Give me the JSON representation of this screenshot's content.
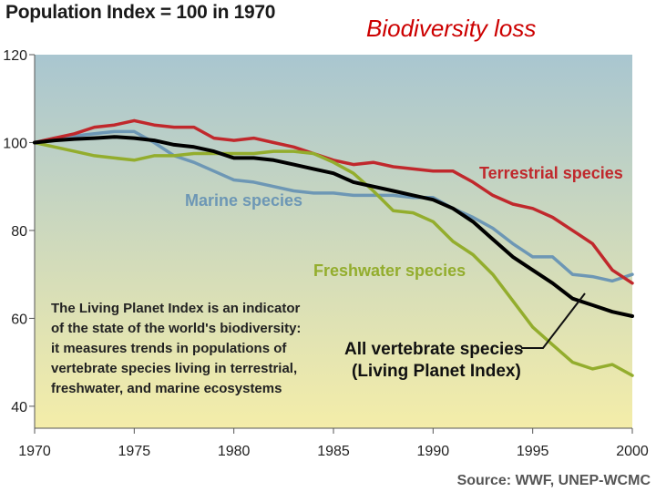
{
  "header": {
    "chart_title": "Population Index = 100 in 1970",
    "slide_title": "Biodiversity loss"
  },
  "source": "Source: WWF, UNEP-WCMC",
  "colors": {
    "terrestrial": "#c0282c",
    "marine": "#6d97b5",
    "freshwater": "#93ad2d",
    "all": "#000000",
    "bg_top": "#a9c6d0",
    "bg_bottom": "#f4eda9"
  },
  "chart_data": {
    "type": "line",
    "title": "Population Index = 100 in 1970",
    "xlabel": "",
    "ylabel": "",
    "xlim": [
      1970,
      2000
    ],
    "ylim": [
      35,
      120
    ],
    "x_ticks": [
      "1970",
      "1975",
      "1980",
      "1985",
      "1990",
      "1995",
      "2000"
    ],
    "y_ticks": [
      "40",
      "60",
      "80",
      "100",
      "120"
    ],
    "series": [
      {
        "name": "Terrestrial species",
        "key": "terrestrial",
        "x": [
          1970,
          1971,
          1972,
          1973,
          1974,
          1975,
          1976,
          1977,
          1978,
          1979,
          1980,
          1981,
          1982,
          1983,
          1984,
          1985,
          1986,
          1987,
          1988,
          1989,
          1990,
          1991,
          1992,
          1993,
          1994,
          1995,
          1996,
          1997,
          1998,
          1999,
          2000
        ],
        "y": [
          100,
          101,
          102,
          103.5,
          104,
          105,
          104,
          103.5,
          103.5,
          101,
          100.5,
          101,
          100,
          99,
          97.5,
          96,
          95,
          95.5,
          94.5,
          94,
          93.5,
          93.5,
          91,
          88,
          86,
          85,
          83,
          80,
          77,
          71,
          68
        ]
      },
      {
        "name": "Marine species",
        "key": "marine",
        "x": [
          1970,
          1971,
          1972,
          1973,
          1974,
          1975,
          1976,
          1977,
          1978,
          1979,
          1980,
          1981,
          1982,
          1983,
          1984,
          1985,
          1986,
          1987,
          1988,
          1989,
          1990,
          1991,
          1992,
          1993,
          1994,
          1995,
          1996,
          1997,
          1998,
          1999,
          2000
        ],
        "y": [
          100,
          101,
          101.5,
          102,
          102.5,
          102.5,
          100,
          97,
          95.5,
          93.5,
          91.5,
          91,
          90,
          89,
          88.5,
          88.5,
          88,
          88,
          88,
          87.5,
          87.5,
          85,
          83,
          80.5,
          77,
          74,
          74,
          70,
          69.5,
          68.5,
          70
        ]
      },
      {
        "name": "Freshwater species",
        "key": "freshwater",
        "x": [
          1970,
          1971,
          1972,
          1973,
          1974,
          1975,
          1976,
          1977,
          1978,
          1979,
          1980,
          1981,
          1982,
          1983,
          1984,
          1985,
          1986,
          1987,
          1988,
          1989,
          1990,
          1991,
          1992,
          1993,
          1994,
          1995,
          1996,
          1997,
          1998,
          1999,
          2000
        ],
        "y": [
          100,
          99,
          98,
          97,
          96.5,
          96,
          97,
          97,
          97.5,
          97.5,
          97.5,
          97.5,
          98,
          98,
          97.5,
          95.5,
          93,
          89,
          84.5,
          84,
          82,
          77.5,
          74.5,
          70,
          64,
          58,
          54,
          50,
          48.5,
          49.5,
          47
        ]
      },
      {
        "name": "All vertebrate species (Living Planet Index)",
        "key": "all",
        "x": [
          1970,
          1971,
          1972,
          1973,
          1974,
          1975,
          1976,
          1977,
          1978,
          1979,
          1980,
          1981,
          1982,
          1983,
          1984,
          1985,
          1986,
          1987,
          1988,
          1989,
          1990,
          1991,
          1992,
          1993,
          1994,
          1995,
          1996,
          1997,
          1998,
          1999,
          2000
        ],
        "y": [
          100,
          100.5,
          100.8,
          101,
          101.3,
          101,
          100.5,
          99.5,
          99,
          98,
          96.5,
          96.5,
          96,
          95,
          94,
          93,
          91,
          90,
          89,
          88,
          87,
          85,
          82,
          78,
          74,
          71,
          68,
          64.5,
          63,
          61.5,
          60.5
        ]
      }
    ],
    "labels": {
      "terrestrial": "Terrestrial species",
      "marine": "Marine species",
      "freshwater": "Freshwater species",
      "all_line1": "All vertebrate species",
      "all_line2": "(Living Planet Index)"
    },
    "annotation": [
      "The Living Planet Index is an indicator",
      "of the state of the world's biodiversity:",
      "it measures trends in populations of",
      "vertebrate species living in terrestrial,",
      "freshwater, and marine ecosystems"
    ]
  }
}
